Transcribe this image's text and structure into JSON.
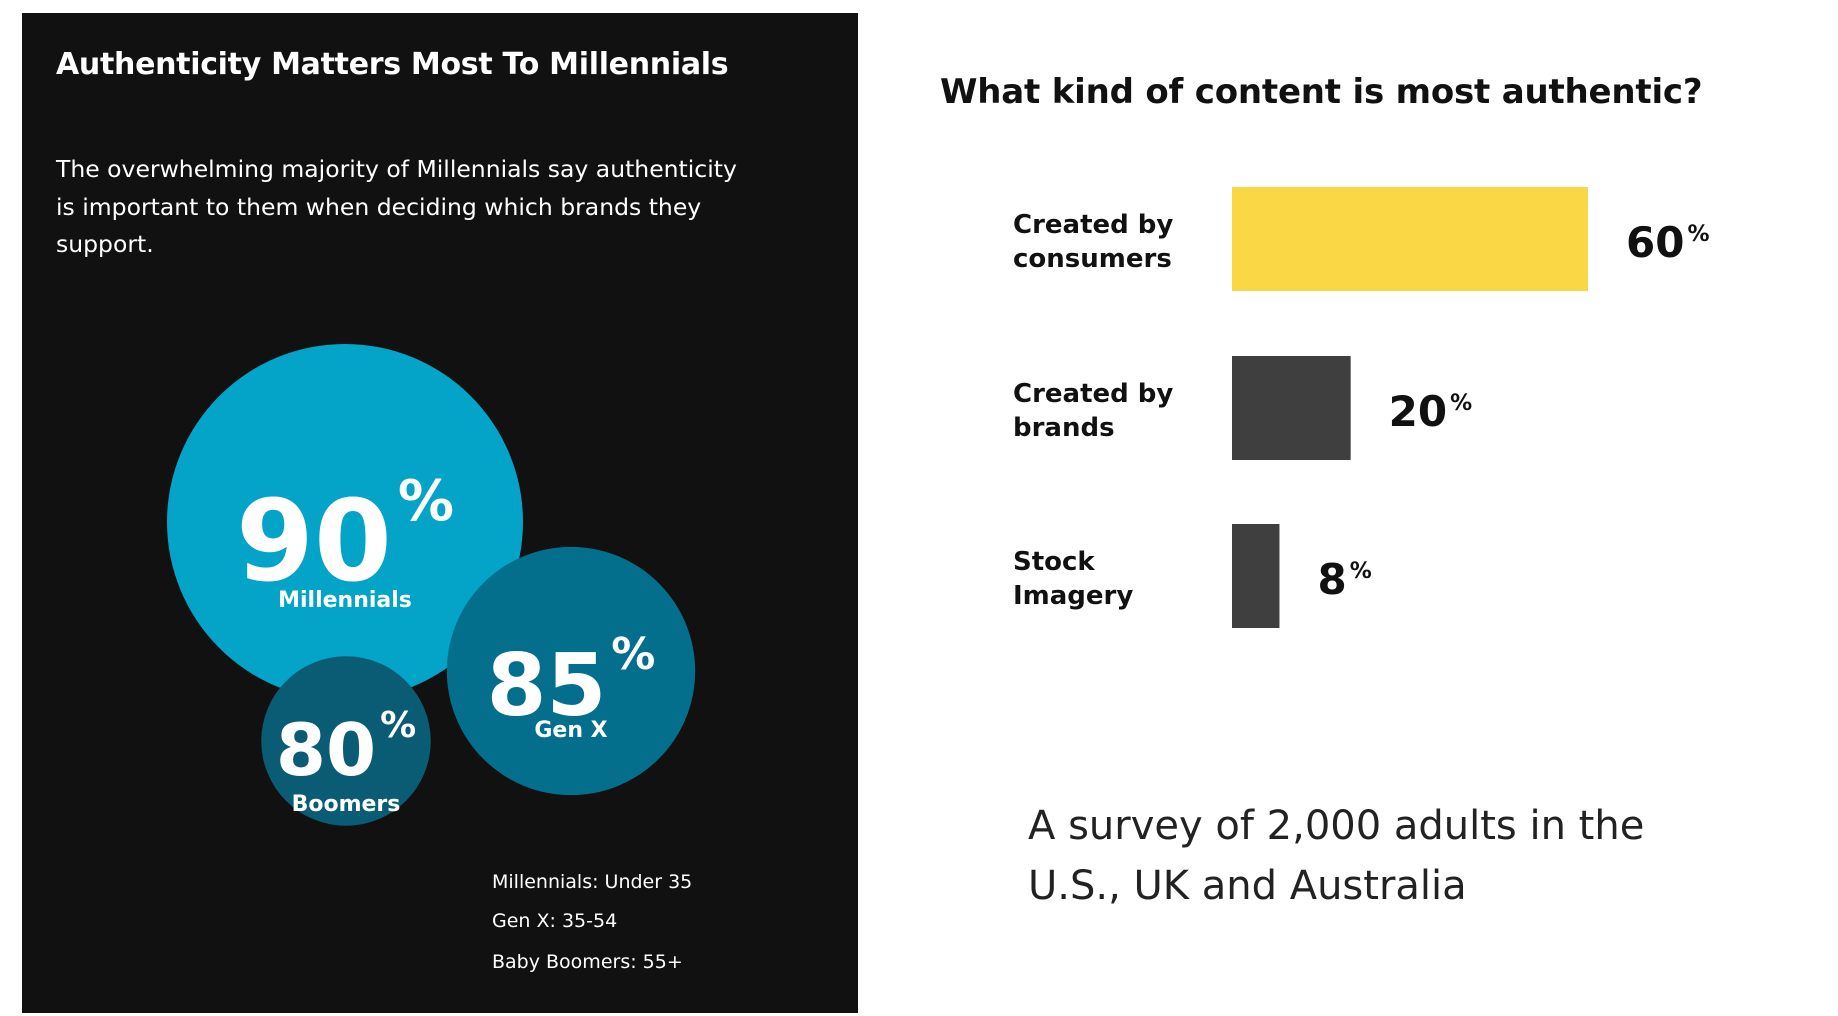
{
  "colors": {
    "panel_bg": "#111111",
    "millennials": "#04a3c8",
    "genx": "#046f8c",
    "boomers": "#0a5c74",
    "bar_highlight": "#f9d745",
    "bar_default": "#3f3f3f"
  },
  "left": {
    "title": "Authenticity Matters Most To Millennials",
    "description": "The overwhelming majority of Millennials say authenticity is important to them when deciding which brands they support.",
    "percent_sign": "%",
    "legend": [
      "Millennials: Under 35",
      "Gen X: 35-54",
      "Baby Boomers: 55+"
    ]
  },
  "right": {
    "title": "What kind of content is most authentic?",
    "survey_note": "A survey of  2,000 adults in the U.S., UK and Australia"
  },
  "chart_data": [
    {
      "type": "bubble",
      "title": "Authenticity Matters Most To Millennials",
      "unit": "%",
      "categories": [
        "Millennials",
        "Gen X",
        "Boomers"
      ],
      "values": [
        90,
        85,
        80
      ],
      "colors": [
        "#04a3c8",
        "#046f8c",
        "#0a5c74"
      ]
    },
    {
      "type": "bar",
      "orientation": "horizontal",
      "title": "What kind of content is most authentic?",
      "unit": "%",
      "categories": [
        [
          "Created by",
          "consumers"
        ],
        [
          "Created by",
          "brands"
        ],
        [
          "Stock",
          "Imagery"
        ]
      ],
      "values": [
        60,
        20,
        8
      ],
      "colors": [
        "#f9d745",
        "#3f3f3f",
        "#3f3f3f"
      ],
      "xlim": [
        0,
        60
      ]
    }
  ]
}
